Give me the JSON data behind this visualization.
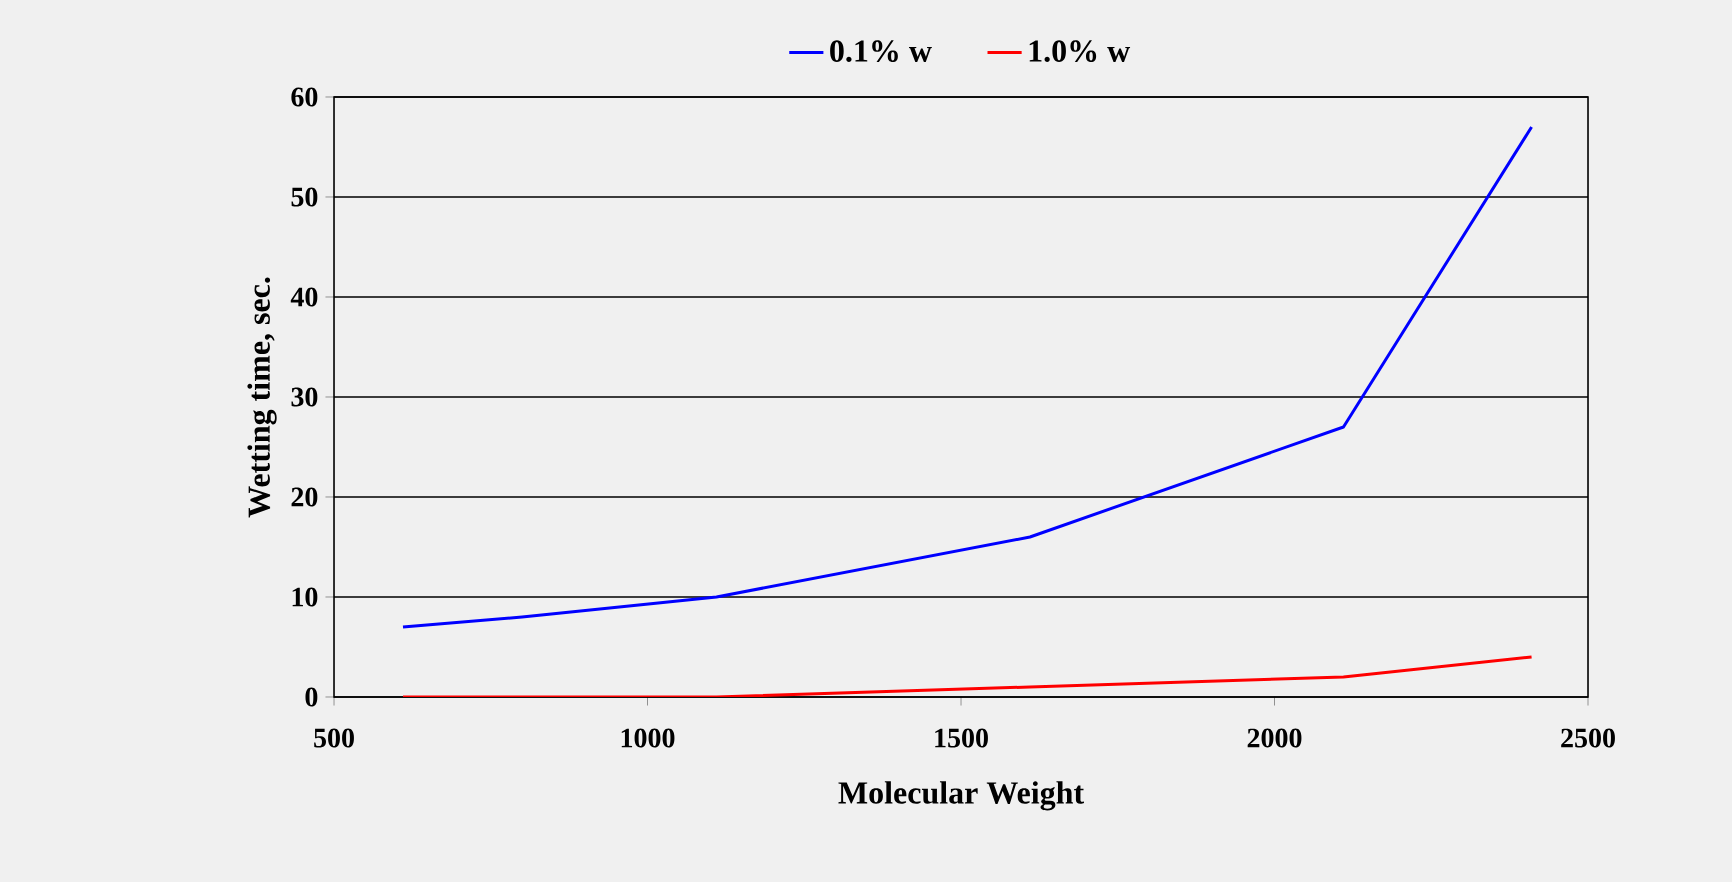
{
  "chart_data": {
    "type": "line",
    "xlabel": "Molecular Weight",
    "ylabel": "Wetting time, sec.",
    "x": [
      610,
      800,
      1110,
      1610,
      2110,
      2410
    ],
    "series": [
      {
        "name": "0.1% w",
        "color": "#0000ff",
        "values": [
          7,
          8,
          10,
          16,
          27,
          57
        ]
      },
      {
        "name": "1.0% w",
        "color": "#ff0000",
        "values": [
          0,
          0,
          0,
          1,
          2,
          4
        ]
      }
    ],
    "xlim": [
      500,
      2500
    ],
    "xticks": [
      500,
      1000,
      1500,
      2000,
      2500
    ],
    "ylim": [
      0,
      60
    ],
    "yticks": [
      0,
      10,
      20,
      30,
      40,
      50,
      60
    ],
    "grid": "y",
    "legend": "top",
    "marker": "none",
    "line_style": "solid"
  }
}
